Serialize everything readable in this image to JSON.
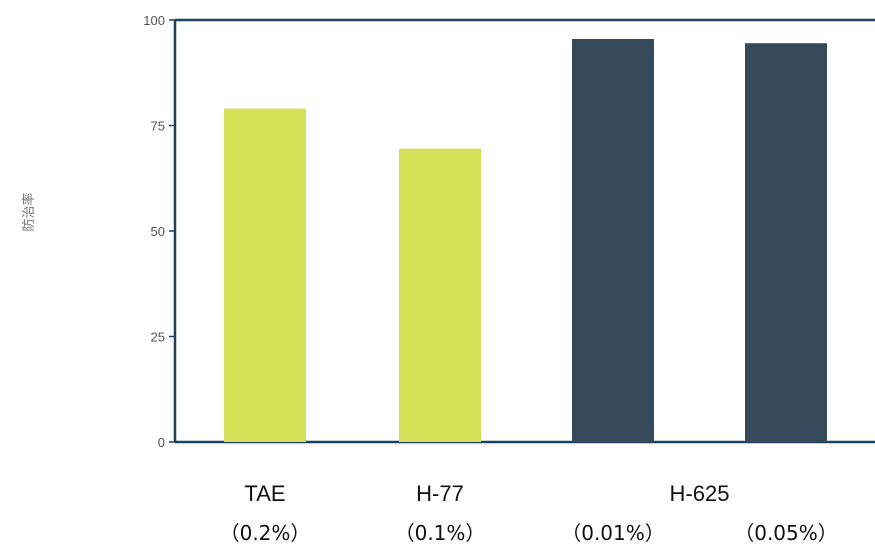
{
  "chart_data": {
    "type": "bar",
    "ylabel": "防治率",
    "ylim": [
      0,
      100
    ],
    "yticks": [
      0,
      25,
      50,
      75,
      100
    ],
    "grid": false,
    "categories": [
      "TAE",
      "H-77",
      "H-625",
      "H-625"
    ],
    "category_labels": [
      "TAE",
      "H-77",
      "H-625"
    ],
    "concentrations": [
      "（0.2%）",
      "（0.1%）",
      "（0.01%）",
      "（0.05%）"
    ],
    "values": [
      79,
      69.5,
      95.5,
      94.5
    ],
    "colors": [
      "#d4e157",
      "#d4e157",
      "#34495a",
      "#34495a"
    ]
  }
}
